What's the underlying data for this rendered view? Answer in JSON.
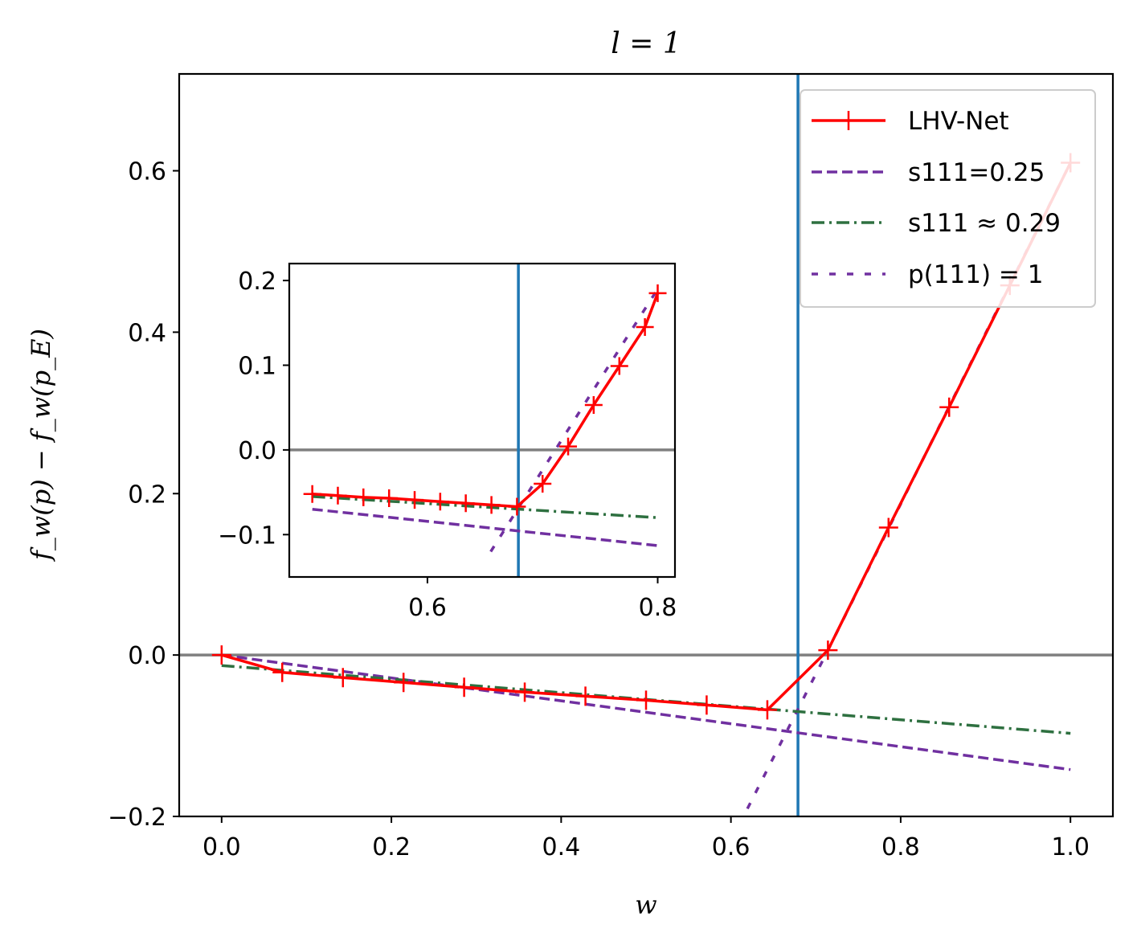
{
  "colors": {
    "lhv": "#ff0000",
    "s025": "#7030a0",
    "s029": "#2e7040",
    "p111": "#7030a0",
    "vline": "#1f77b4",
    "hline": "#808080"
  },
  "chart_data": [
    {
      "type": "line",
      "title": "l = 1",
      "xlabel": "w",
      "ylabel": "f_w(p) − f_w(p_E)",
      "xlim": [
        -0.05,
        1.05
      ],
      "ylim": [
        -0.2,
        0.72
      ],
      "xticks": [
        "0.0",
        "0.2",
        "0.4",
        "0.6",
        "0.8",
        "1.0"
      ],
      "yticks": [
        "−0.2",
        "0.0",
        "0.2",
        "0.4",
        "0.6"
      ],
      "xtick_values": [
        0.0,
        0.2,
        0.4,
        0.6,
        0.8,
        1.0
      ],
      "ytick_values": [
        -0.2,
        0.0,
        0.2,
        0.4,
        0.6
      ],
      "vline_x": 0.679,
      "hline_y": 0.0,
      "legend_position": "top-right",
      "legend": [
        "LHV-Net",
        "s111=0.25",
        "s111 ≈ 0.29",
        "p(111) = 1"
      ],
      "series": [
        {
          "name": "LHV-Net",
          "style": "solid-plus",
          "x": [
            0.0,
            0.0714,
            0.1429,
            0.2143,
            0.2857,
            0.3571,
            0.4286,
            0.5,
            0.5714,
            0.6429,
            0.7143,
            0.7857,
            0.8571,
            0.9286,
            1.0
          ],
          "y": [
            0.0,
            -0.0215,
            -0.028,
            -0.034,
            -0.04,
            -0.046,
            -0.051,
            -0.056,
            -0.062,
            -0.068,
            0.006,
            0.158,
            0.307,
            0.458,
            0.61
          ]
        },
        {
          "name": "s111=0.25",
          "style": "dashed",
          "x": [
            0.0,
            1.0
          ],
          "y": [
            0.0,
            -0.142
          ]
        },
        {
          "name": "s111 ≈ 0.29",
          "style": "dashdot",
          "x": [
            0.0,
            1.0
          ],
          "y": [
            -0.013,
            -0.097
          ]
        },
        {
          "name": "p(111) = 1",
          "style": "dotted",
          "x": [
            0.61,
            0.7143,
            1.0
          ],
          "y": [
            -0.21,
            0.006,
            0.61
          ]
        }
      ]
    },
    {
      "type": "line",
      "title": "",
      "xlabel": "",
      "ylabel": "",
      "xlim": [
        0.48,
        0.815
      ],
      "ylim": [
        -0.15,
        0.22
      ],
      "xticks": [
        "0.6",
        "0.8"
      ],
      "yticks": [
        "−0.1",
        "0.0",
        "0.1",
        "0.2"
      ],
      "xtick_values": [
        0.6,
        0.8
      ],
      "ytick_values": [
        -0.1,
        0.0,
        0.1,
        0.2
      ],
      "vline_x": 0.679,
      "hline_y": 0.0,
      "series": [
        {
          "name": "LHV-Net",
          "style": "solid-plus",
          "x": [
            0.5,
            0.5222,
            0.5444,
            0.5667,
            0.5889,
            0.6111,
            0.6333,
            0.6556,
            0.6778,
            0.7,
            0.7222,
            0.7444,
            0.7667,
            0.7889,
            0.8
          ],
          "y": [
            -0.052,
            -0.054,
            -0.056,
            -0.057,
            -0.059,
            -0.061,
            -0.063,
            -0.065,
            -0.067,
            -0.04,
            0.004,
            0.053,
            0.099,
            0.145,
            0.185
          ]
        },
        {
          "name": "s111=0.25",
          "style": "dashed",
          "x": [
            0.5,
            0.8
          ],
          "y": [
            -0.07,
            -0.113
          ]
        },
        {
          "name": "s111 ≈ 0.29",
          "style": "dashdot",
          "x": [
            0.5,
            0.8
          ],
          "y": [
            -0.055,
            -0.08
          ]
        },
        {
          "name": "p(111) = 1",
          "style": "dotted",
          "x": [
            0.655,
            0.69,
            0.8
          ],
          "y": [
            -0.12,
            -0.045,
            0.19
          ]
        }
      ]
    }
  ]
}
